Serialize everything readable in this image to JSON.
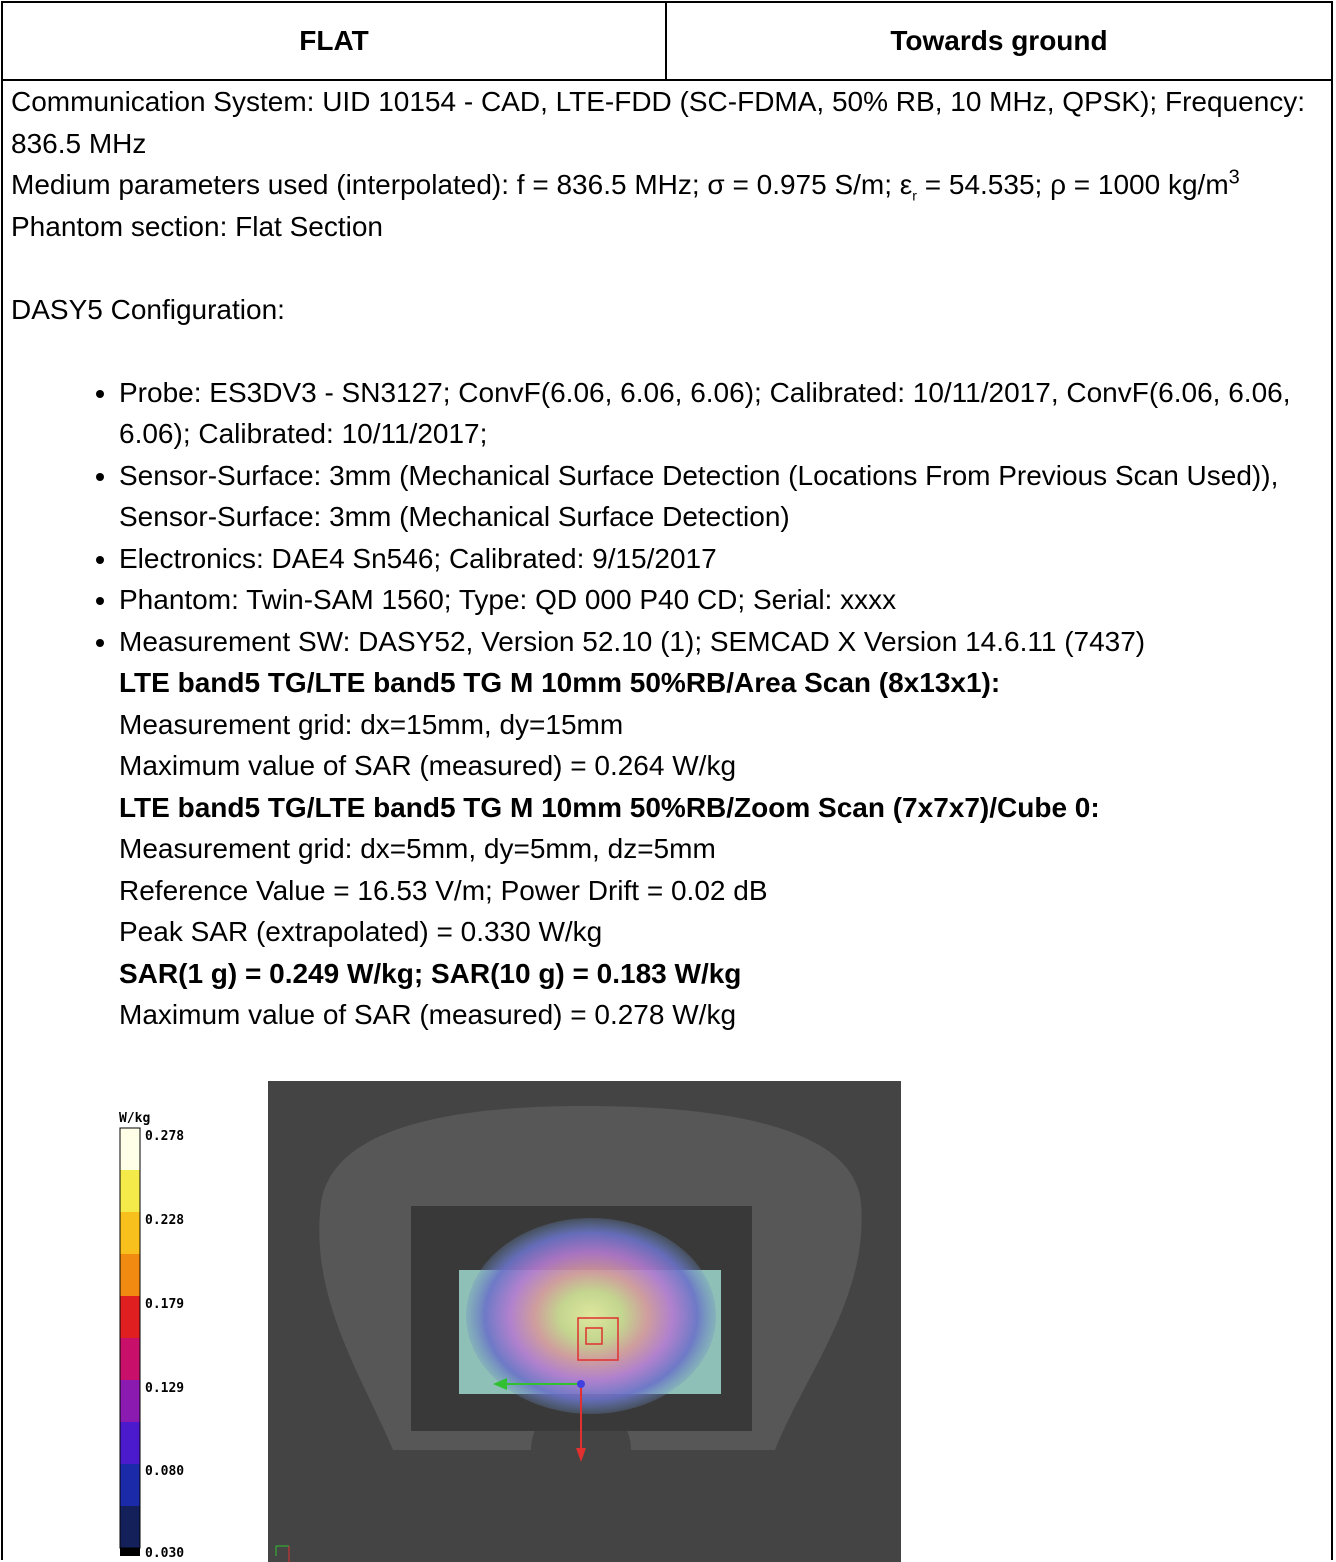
{
  "header": {
    "left": "FLAT",
    "right": "Towards ground"
  },
  "communication": "Communication System: UID 10154 - CAD, LTE-FDD (SC-FDMA, 50% RB, 10 MHz, QPSK); Frequency: 836.5 MHz",
  "medium": {
    "text": "Medium parameters used (interpolated): f = 836.5 MHz; σ = 0.975 S/m; ε",
    "sub": "r",
    "text2": " = 54.535; ρ = 1000 kg/m",
    "sup": "3"
  },
  "phantom_section": "Phantom section: Flat Section",
  "config_title": "DASY5 Configuration:",
  "bullets": [
    "Probe: ES3DV3 - SN3127; ConvF(6.06, 6.06, 6.06); Calibrated: 10/11/2017, ConvF(6.06, 6.06, 6.06); Calibrated: 10/11/2017;",
    "Sensor-Surface: 3mm (Mechanical Surface Detection (Locations From Previous Scan Used)), Sensor-Surface: 3mm (Mechanical Surface Detection)",
    "Electronics: DAE4 Sn546; Calibrated: 9/15/2017",
    "Phantom: Twin-SAM 1560; Type: QD 000 P40 CD; Serial: xxxx",
    "Measurement SW: DASY52, Version 52.10 (1); SEMCAD X Version 14.6.11 (7437)"
  ],
  "area_scan": {
    "title": "LTE band5 TG/LTE band5 TG M 10mm 50%RB/Area Scan (8x13x1):",
    "lines": [
      "Measurement grid: dx=15mm, dy=15mm",
      "Maximum value of SAR (measured) = 0.264 W/kg"
    ]
  },
  "zoom_scan": {
    "title": "LTE band5 TG/LTE band5 TG M 10mm 50%RB/Zoom Scan (7x7x7)/Cube 0:",
    "lines": [
      "Measurement grid: dx=5mm, dy=5mm, dz=5mm",
      "Reference Value = 16.53 V/m; Power Drift = 0.02 dB",
      "Peak SAR (extrapolated) = 0.330 W/kg"
    ],
    "result": "SAR(1 g) = 0.249 W/kg; SAR(10 g) = 0.183 W/kg",
    "last": "Maximum value of SAR (measured) = 0.278 W/kg"
  },
  "colorbar": {
    "unit": "W/kg",
    "labels": [
      "0.278",
      "0.228",
      "0.179",
      "0.129",
      "0.080",
      "0.030"
    ]
  }
}
